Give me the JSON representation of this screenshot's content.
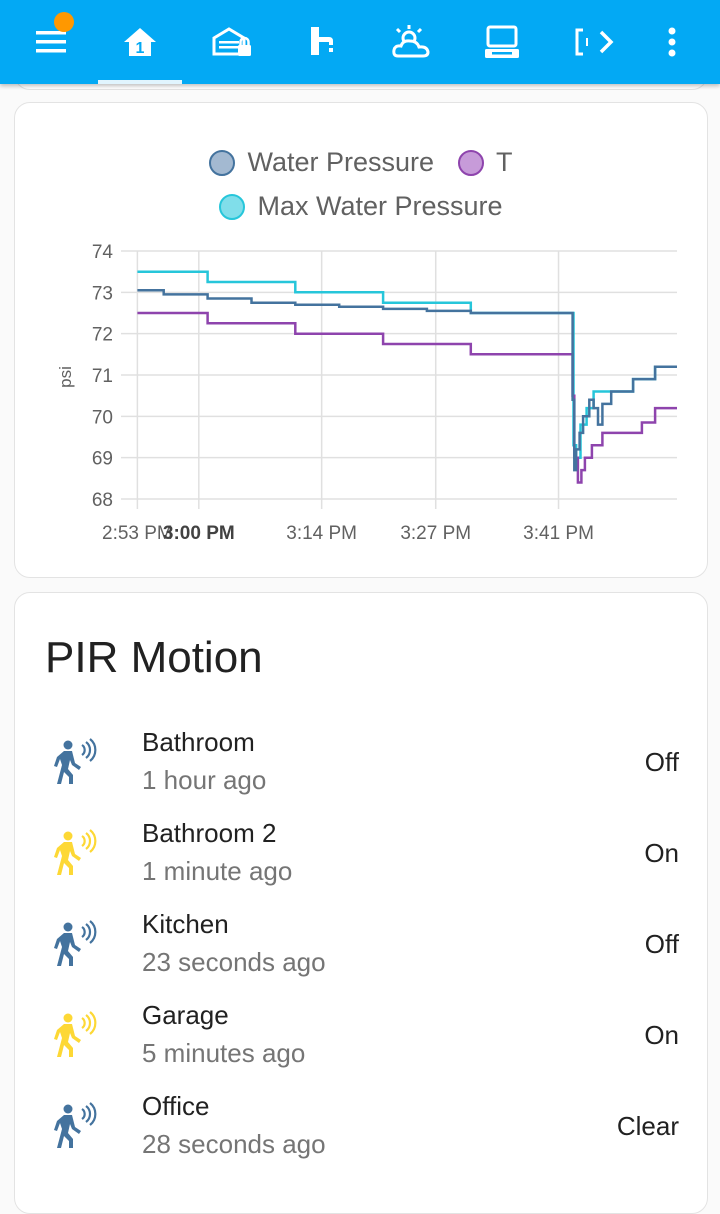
{
  "toolbar": {
    "items": [
      {
        "icon": "menu-icon"
      },
      {
        "icon": "home-icon"
      },
      {
        "icon": "garage-lock-icon"
      },
      {
        "icon": "faucet-icon"
      },
      {
        "icon": "weather-icon"
      },
      {
        "icon": "laptop-icon"
      },
      {
        "icon": "more-views-icon"
      },
      {
        "icon": "dots-vertical-icon"
      }
    ],
    "accent": "#03a9f4",
    "badge_color": "#ff9800"
  },
  "chart_data": {
    "type": "line",
    "ylabel": "psi",
    "ylim": [
      68,
      74
    ],
    "yticks": [
      68,
      69,
      70,
      71,
      72,
      73,
      74
    ],
    "xticks": [
      {
        "t": 0,
        "label": "2:53 PM",
        "bold": false
      },
      {
        "t": 7,
        "label": "3:00 PM",
        "bold": true
      },
      {
        "t": 21,
        "label": "3:14 PM",
        "bold": false
      },
      {
        "t": 34,
        "label": "3:27 PM",
        "bold": false
      },
      {
        "t": 48,
        "label": "3:41 PM",
        "bold": false
      }
    ],
    "xlim": [
      -0.5,
      61.5
    ],
    "step": true,
    "series": [
      {
        "name": "Water Pressure",
        "color": "#44739e",
        "fill": "#a3b9d1",
        "points": [
          [
            0,
            73.05
          ],
          [
            3,
            72.95
          ],
          [
            8,
            72.85
          ],
          [
            13,
            72.75
          ],
          [
            18,
            72.7
          ],
          [
            23,
            72.65
          ],
          [
            28,
            72.6
          ],
          [
            33,
            72.55
          ],
          [
            38,
            72.5
          ],
          [
            45,
            72.5
          ],
          [
            49.5,
            72.5
          ],
          [
            49.6,
            70.4
          ],
          [
            49.8,
            68.7
          ],
          [
            50,
            69.2
          ],
          [
            50.4,
            69.6
          ],
          [
            50.8,
            70.0
          ],
          [
            51.5,
            70.4
          ],
          [
            52,
            70.2
          ],
          [
            52.5,
            69.8
          ],
          [
            53,
            70.3
          ],
          [
            54,
            70.6
          ],
          [
            55.5,
            70.6
          ],
          [
            56.5,
            70.9
          ],
          [
            59,
            71.2
          ],
          [
            61.5,
            71.2
          ]
        ]
      },
      {
        "name": "T",
        "color": "#8e44ad",
        "fill": "#c79bd9",
        "points": [
          [
            0,
            72.5
          ],
          [
            8,
            72.25
          ],
          [
            18,
            72.0
          ],
          [
            28,
            71.75
          ],
          [
            38,
            71.5
          ],
          [
            49.5,
            71.5
          ],
          [
            49.6,
            70.5
          ],
          [
            49.8,
            69.0
          ],
          [
            50.2,
            68.4
          ],
          [
            50.6,
            68.7
          ],
          [
            51,
            69.0
          ],
          [
            51.8,
            69.3
          ],
          [
            53,
            69.6
          ],
          [
            56,
            69.6
          ],
          [
            57.5,
            69.85
          ],
          [
            59,
            70.2
          ],
          [
            61.5,
            70.2
          ]
        ]
      },
      {
        "name": "Max Water Pressure",
        "color": "#26c6da",
        "fill": "#80deea",
        "points": [
          [
            0,
            73.5
          ],
          [
            8,
            73.25
          ],
          [
            18,
            73.0
          ],
          [
            28,
            72.75
          ],
          [
            38,
            72.5
          ],
          [
            45,
            72.5
          ],
          [
            49.5,
            72.5
          ],
          [
            49.7,
            69.3
          ],
          [
            50,
            69.0
          ],
          [
            50.5,
            69.8
          ],
          [
            51.2,
            70.2
          ],
          [
            52,
            70.6
          ],
          [
            54,
            70.6
          ],
          [
            55.5,
            70.6
          ],
          [
            56.5,
            70.9
          ],
          [
            59,
            71.2
          ],
          [
            61.5,
            71.2
          ]
        ]
      }
    ]
  },
  "motion": {
    "title": "PIR Motion",
    "items": [
      {
        "name": "Bathroom",
        "time": "1 hour ago",
        "state": "Off",
        "active": false
      },
      {
        "name": "Bathroom 2",
        "time": "1 minute ago",
        "state": "On",
        "active": true
      },
      {
        "name": "Kitchen",
        "time": "23 seconds ago",
        "state": "Off",
        "active": false
      },
      {
        "name": "Garage",
        "time": "5 minutes ago",
        "state": "On",
        "active": true
      },
      {
        "name": "Office",
        "time": "28 seconds ago",
        "state": "Clear",
        "active": false
      }
    ],
    "icon": "motion-sensor-icon",
    "inactive_color": "#44739e",
    "active_color": "#fdd835"
  }
}
